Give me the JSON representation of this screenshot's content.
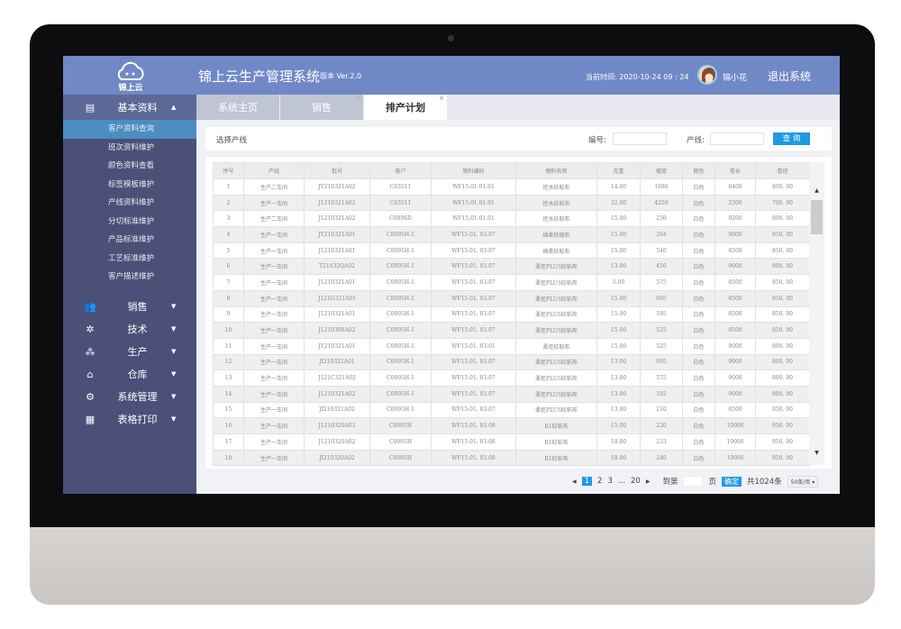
{
  "app": {
    "logo_text": "锦上云",
    "title": "锦上云生产管理系统",
    "version": "版本 Ver.2.0",
    "time_label": "当前时间: 2020-10-24  09 : 24",
    "user": "锦小花",
    "logout": "退出系统"
  },
  "sidebar": {
    "section": "基本资料",
    "sub_items": [
      "客户资料查询",
      "班次资料维护",
      "颜色资料查看",
      "标签模板维护",
      "产线资料维护",
      "分切标准维护",
      "产品标准维护",
      "工艺标准维护",
      "客户描述维护"
    ],
    "menus": [
      {
        "label": "销售",
        "icon": "users-icon"
      },
      {
        "label": "技术",
        "icon": "atom-icon"
      },
      {
        "label": "生产",
        "icon": "production-icon"
      },
      {
        "label": "仓库",
        "icon": "warehouse-icon"
      },
      {
        "label": "系统管理",
        "icon": "gear-icon"
      },
      {
        "label": "表格打印",
        "icon": "table-icon"
      }
    ]
  },
  "tabs": [
    {
      "label": "系统主页"
    },
    {
      "label": "销售"
    },
    {
      "label": "排产计划",
      "active": true
    }
  ],
  "filter": {
    "select_line": "选择产线",
    "code_label": "编号:",
    "line_label": "产线:",
    "query": "查 询"
  },
  "table": {
    "columns": [
      "序号",
      "产线",
      "批号",
      "客户",
      "物料编码",
      "物料名称",
      "克重",
      "幅宽",
      "颜色",
      "卷长",
      "卷径"
    ],
    "rows": [
      [
        "1",
        "生产二车间",
        "JY210321A02",
        "C03511",
        "WF15.01.01.01",
        "拒水纺粘布",
        "14.00",
        "1680",
        "白色",
        "8400",
        "800. 00"
      ],
      [
        "2",
        "生产一车间",
        "J1210321A02",
        "C03511",
        "WF15.01.01.01",
        "拒水纺粘布",
        "32.00",
        "4250",
        "白色",
        "2300",
        "700. 00"
      ],
      [
        "3",
        "生产二车间",
        "J1210321A02",
        "C0096D",
        "WF15.01.01.01",
        "拒水纺粘布",
        "15.00",
        "250",
        "白色",
        "9200",
        "800. 00"
      ],
      [
        "4",
        "生产一车间",
        "JY210321A01",
        "C0095H-1",
        "WF15.01. 03.07",
        "绵柔纺熔布",
        "15.00",
        "264",
        "白色",
        "9000",
        "850. 00"
      ],
      [
        "5",
        "生产一车间",
        "J1210321A01",
        "C0095H-1",
        "WF15.01. 03.07",
        "棉柔纺粘布",
        "15.00",
        "540",
        "白色",
        "8500",
        "850. 00"
      ],
      [
        "6",
        "生产一车间",
        "T21032QA02",
        "C0095H-1",
        "WF15.01. 03.07",
        "柔拒PLUS纺粘布",
        "13.00",
        "450",
        "白色",
        "9000",
        "800. 00"
      ],
      [
        "7",
        "生产一车间",
        "J1210321A01",
        "C0095H-1",
        "WF15.01. 03.07",
        "柔拒PLUS纺粘布",
        "5.00",
        "575",
        "白色",
        "8500",
        "850. 00"
      ],
      [
        "8",
        "生产一车间",
        "J121G321A01",
        "C0095H-1",
        "WF15.01. 03.07",
        "柔拒PLUS纺粘布",
        "15.00",
        "605",
        "白色",
        "8500",
        "850. 00"
      ],
      [
        "9",
        "生产一车间",
        "J1210321A01",
        "C0095H-1",
        "WF15.01. 03.07",
        "柔拒PLUS纺粘布",
        "15.00",
        "195",
        "白色",
        "8500",
        "850. 00"
      ],
      [
        "10",
        "生产一车间",
        "J1210308A02",
        "C0095H-1",
        "WF15.01. 03.07",
        "柔拒PLUS纺粘布",
        "15.00",
        "525",
        "白色",
        "8500",
        "850. 00"
      ],
      [
        "11",
        "生产一车间",
        "JY210321A01",
        "C0095H-1",
        "WF15.01. 03.01",
        "柔拒纺粘布",
        "15.00",
        "525",
        "白色",
        "9000",
        "800. 00"
      ],
      [
        "12",
        "生产一车间",
        "Jf210321A01",
        "C0095H-1",
        "WF15.01. 03.07",
        "柔拒PLUS纺粘布",
        "13.00",
        "605",
        "白色",
        "9000",
        "800. 00"
      ],
      [
        "13",
        "生产一车间",
        "J121C321A02",
        "C0095H-1",
        "WF15.01. 03.07",
        "柔拒PLUS纺粘布",
        "13.00",
        "575",
        "白色",
        "9000",
        "800. 00"
      ],
      [
        "14",
        "生产一车间",
        "J1210321A02",
        "C0095H-1",
        "WF15.01. 03.07",
        "柔拒PLUS纺粘布",
        "13.00",
        "192",
        "白色",
        "9000",
        "800. 00"
      ],
      [
        "15",
        "生产一车间",
        "Jf210321A02",
        "C0095H-1",
        "WF15.01. 03.07",
        "柔拒PLUS纺粘布",
        "13.00",
        "210",
        "白色",
        "8500",
        "850. 00"
      ],
      [
        "16",
        "生产一车间",
        "J1210320A03",
        "C0095H",
        "WF15.01. 03.08",
        "R1纺粘布",
        "15.00",
        "220",
        "白色",
        "10000",
        "950. 00"
      ],
      [
        "17",
        "生产一车间",
        "J1210320A02",
        "C0095H",
        "WF15.01. 03.08",
        "R1纺粘布",
        "18.00",
        "233",
        "白色",
        "10000",
        "950. 00"
      ],
      [
        "18",
        "生产一车间",
        "Jf210320A02",
        "C0095H",
        "WF15.01. 03.08",
        "R1纺粘布",
        "18.00",
        "240",
        "白色",
        "10000",
        "950. 00"
      ]
    ]
  },
  "pagination": {
    "pages": [
      "1",
      "2",
      "3",
      "...",
      "20"
    ],
    "current": "1",
    "goto_label": "到第",
    "page_unit": "页",
    "confirm": "确定",
    "total": "共1024条",
    "page_size": "50条/页 ▾"
  },
  "colors": {
    "header": "#7089c6",
    "sidebar": "#4a5078",
    "accent": "#1e9be3"
  }
}
